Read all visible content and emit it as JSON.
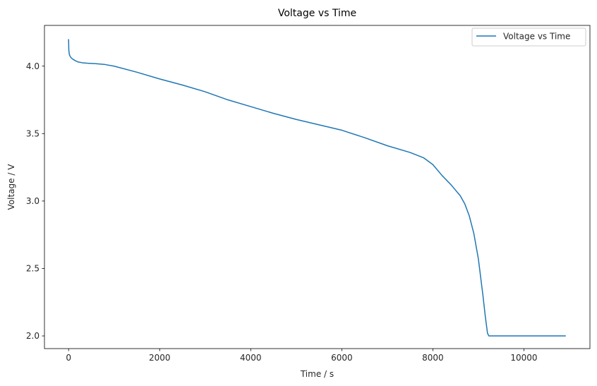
{
  "chart_data": {
    "type": "line",
    "title": "Voltage vs Time",
    "xlabel": "Time / s",
    "ylabel": "Voltage / V",
    "xlim": [
      -530,
      11450
    ],
    "ylim": [
      1.906,
      4.302
    ],
    "xticks": [
      0,
      2000,
      4000,
      6000,
      8000,
      10000
    ],
    "yticks": [
      2.0,
      2.5,
      3.0,
      3.5,
      4.0
    ],
    "xtick_labels": [
      "0",
      "2000",
      "4000",
      "6000",
      "8000",
      "10000"
    ],
    "ytick_labels": [
      "2.0",
      "2.5",
      "3.0",
      "3.5",
      "4.0"
    ],
    "grid": false,
    "legend_position": "top-right",
    "series": [
      {
        "name": "Voltage vs Time",
        "color": "#1f77b4",
        "x": [
          0,
          5,
          15,
          30,
          60,
          100,
          150,
          200,
          300,
          400,
          500,
          600,
          800,
          1000,
          1500,
          2000,
          2500,
          3000,
          3500,
          4000,
          4500,
          5000,
          5500,
          6000,
          6500,
          7000,
          7500,
          7800,
          8000,
          8200,
          8400,
          8600,
          8700,
          8800,
          8900,
          9000,
          9100,
          9150,
          9200,
          9230,
          9500,
          10000,
          10500,
          10920
        ],
        "y": [
          4.2,
          4.12,
          4.09,
          4.075,
          4.06,
          4.05,
          4.04,
          4.032,
          4.025,
          4.022,
          4.02,
          4.018,
          4.012,
          4.0,
          3.955,
          3.905,
          3.86,
          3.81,
          3.75,
          3.7,
          3.65,
          3.605,
          3.565,
          3.525,
          3.47,
          3.41,
          3.36,
          3.32,
          3.27,
          3.19,
          3.12,
          3.04,
          2.98,
          2.89,
          2.76,
          2.57,
          2.3,
          2.15,
          2.02,
          2.0,
          2.0,
          2.0,
          2.0,
          2.0
        ]
      }
    ]
  }
}
